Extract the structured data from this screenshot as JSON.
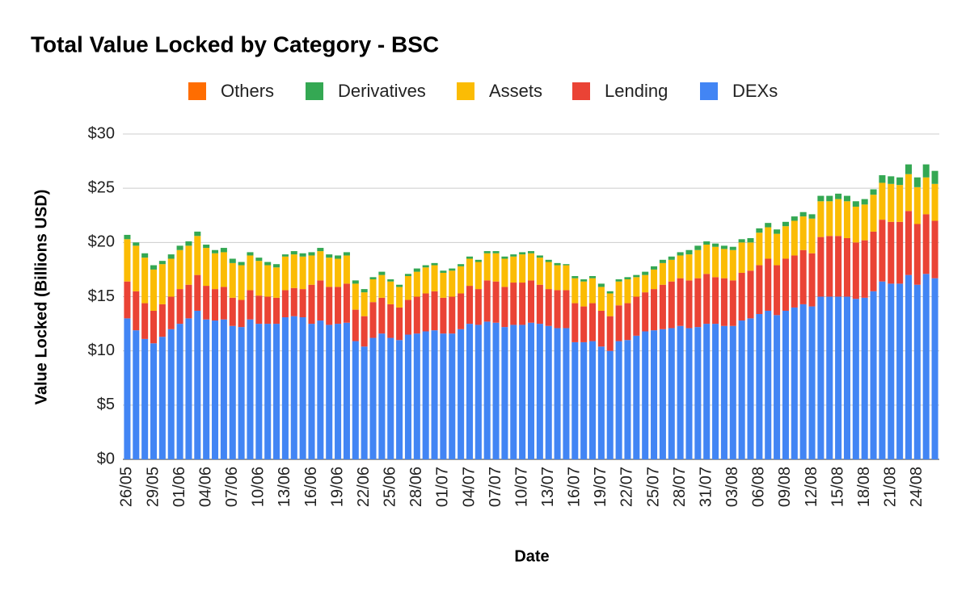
{
  "chart_data": {
    "type": "stacked_bar",
    "title": "Total Value Locked by Category - BSC",
    "x_label": "Date",
    "y_label": "Value Locked (Billions USD)",
    "categories": [
      "26/05",
      null,
      null,
      "29/05",
      null,
      null,
      "01/06",
      null,
      null,
      "04/06",
      null,
      null,
      "07/06",
      null,
      null,
      "10/06",
      null,
      null,
      "13/06",
      null,
      null,
      "16/06",
      null,
      null,
      "19/06",
      null,
      null,
      "22/06",
      null,
      null,
      "25/06",
      null,
      null,
      "28/06",
      null,
      null,
      "01/07",
      null,
      null,
      "04/07",
      null,
      null,
      "07/07",
      null,
      null,
      "10/07",
      null,
      null,
      "13/07",
      null,
      null,
      "16/07",
      null,
      null,
      "19/07",
      null,
      null,
      "22/07",
      null,
      null,
      "25/07",
      null,
      null,
      "28/07",
      null,
      null,
      "31/07",
      null,
      null,
      "03/08",
      null,
      null,
      "06/08",
      null,
      null,
      "09/08",
      null,
      null,
      "12/08",
      null,
      null,
      "15/08",
      null,
      null,
      "18/08",
      null,
      null,
      "21/08",
      null,
      null,
      "24/08",
      null,
      null
    ],
    "series": [
      {
        "name": "DEXs",
        "color": "#4285f4",
        "values": [
          13.0,
          11.9,
          11.1,
          10.7,
          11.3,
          12.0,
          12.5,
          13.0,
          13.7,
          12.9,
          12.8,
          12.9,
          12.3,
          12.2,
          12.9,
          12.5,
          12.5,
          12.5,
          13.1,
          13.2,
          13.1,
          12.5,
          12.8,
          12.4,
          12.5,
          12.6,
          10.9,
          10.4,
          11.2,
          11.6,
          11.2,
          11.0,
          11.5,
          11.6,
          11.8,
          11.9,
          11.6,
          11.6,
          12.0,
          12.5,
          12.4,
          12.7,
          12.6,
          12.2,
          12.4,
          12.4,
          12.6,
          12.5,
          12.3,
          12.1,
          12.1,
          10.8,
          10.8,
          10.9,
          10.4,
          10.0,
          10.9,
          11.0,
          11.4,
          11.8,
          11.9,
          12.0,
          12.1,
          12.3,
          12.1,
          12.2,
          12.5,
          12.5,
          12.3,
          12.3,
          12.8,
          13.0,
          13.4,
          13.7,
          13.3,
          13.7,
          14.0,
          14.3,
          14.1,
          15.0,
          15.0,
          15.0,
          15.0,
          14.8,
          14.9,
          15.5,
          16.4,
          16.2,
          16.2,
          17.0,
          16.1,
          17.1,
          16.7
        ]
      },
      {
        "name": "Lending",
        "color": "#ea4335",
        "values": [
          3.4,
          3.6,
          3.3,
          3.0,
          3.0,
          3.0,
          3.2,
          3.1,
          3.3,
          3.1,
          2.9,
          3.0,
          2.6,
          2.5,
          2.7,
          2.6,
          2.5,
          2.4,
          2.5,
          2.6,
          2.6,
          3.6,
          3.7,
          3.5,
          3.4,
          3.6,
          2.9,
          2.8,
          3.3,
          3.3,
          3.1,
          3.0,
          3.2,
          3.4,
          3.5,
          3.6,
          3.3,
          3.4,
          3.3,
          3.5,
          3.3,
          3.8,
          3.8,
          3.7,
          3.9,
          3.9,
          3.9,
          3.6,
          3.4,
          3.5,
          3.5,
          3.6,
          3.3,
          3.5,
          3.3,
          3.2,
          3.3,
          3.4,
          3.6,
          3.6,
          3.8,
          4.1,
          4.3,
          4.4,
          4.4,
          4.5,
          4.6,
          4.3,
          4.4,
          4.2,
          4.4,
          4.4,
          4.5,
          4.8,
          4.6,
          4.8,
          4.8,
          5.0,
          4.9,
          5.5,
          5.6,
          5.6,
          5.4,
          5.2,
          5.3,
          5.5,
          5.7,
          5.7,
          5.7,
          5.9,
          5.6,
          5.5,
          5.3
        ]
      },
      {
        "name": "Assets",
        "color": "#fbbc04",
        "values": [
          3.9,
          4.2,
          4.2,
          3.8,
          3.7,
          3.5,
          3.6,
          3.6,
          3.6,
          3.5,
          3.3,
          3.2,
          3.2,
          3.2,
          3.2,
          3.2,
          2.9,
          2.8,
          3.1,
          3.1,
          3.0,
          2.7,
          2.7,
          2.7,
          2.6,
          2.6,
          2.4,
          2.2,
          2.1,
          2.1,
          2.1,
          1.9,
          2.2,
          2.3,
          2.4,
          2.4,
          2.3,
          2.4,
          2.5,
          2.5,
          2.5,
          2.5,
          2.6,
          2.6,
          2.4,
          2.6,
          2.5,
          2.5,
          2.5,
          2.3,
          2.3,
          2.3,
          2.3,
          2.3,
          2.2,
          2.1,
          2.2,
          2.2,
          1.8,
          1.6,
          1.8,
          2.0,
          2.0,
          2.1,
          2.4,
          2.6,
          2.7,
          2.8,
          2.7,
          2.8,
          2.8,
          2.6,
          3.0,
          2.9,
          2.9,
          3.0,
          3.2,
          3.1,
          3.2,
          3.3,
          3.2,
          3.4,
          3.4,
          3.3,
          3.3,
          3.4,
          3.4,
          3.5,
          3.4,
          3.4,
          3.4,
          3.4,
          3.4
        ]
      },
      {
        "name": "Derivatives",
        "color": "#34a853",
        "values": [
          0.4,
          0.3,
          0.4,
          0.4,
          0.3,
          0.4,
          0.4,
          0.4,
          0.4,
          0.3,
          0.3,
          0.4,
          0.4,
          0.3,
          0.3,
          0.3,
          0.3,
          0.3,
          0.2,
          0.3,
          0.3,
          0.3,
          0.3,
          0.3,
          0.3,
          0.3,
          0.3,
          0.3,
          0.2,
          0.3,
          0.2,
          0.2,
          0.2,
          0.3,
          0.2,
          0.2,
          0.2,
          0.2,
          0.2,
          0.2,
          0.2,
          0.2,
          0.2,
          0.2,
          0.2,
          0.2,
          0.2,
          0.2,
          0.2,
          0.2,
          0.1,
          0.2,
          0.2,
          0.2,
          0.3,
          0.2,
          0.2,
          0.2,
          0.2,
          0.3,
          0.3,
          0.3,
          0.3,
          0.3,
          0.4,
          0.4,
          0.3,
          0.3,
          0.3,
          0.3,
          0.3,
          0.4,
          0.4,
          0.4,
          0.4,
          0.4,
          0.4,
          0.4,
          0.4,
          0.5,
          0.5,
          0.5,
          0.5,
          0.5,
          0.5,
          0.5,
          0.7,
          0.7,
          0.7,
          0.9,
          0.9,
          1.2,
          1.2
        ]
      },
      {
        "name": "Others",
        "color": "#ff6d01",
        "values": [
          0,
          0,
          0,
          0,
          0,
          0,
          0,
          0,
          0,
          0,
          0,
          0,
          0,
          0,
          0,
          0,
          0,
          0,
          0,
          0,
          0,
          0,
          0,
          0,
          0,
          0,
          0,
          0,
          0,
          0,
          0,
          0,
          0,
          0,
          0,
          0,
          0,
          0,
          0,
          0,
          0,
          0,
          0,
          0,
          0,
          0,
          0,
          0,
          0,
          0,
          0,
          0,
          0,
          0,
          0,
          0,
          0,
          0,
          0,
          0,
          0,
          0,
          0,
          0,
          0,
          0,
          0,
          0,
          0,
          0,
          0,
          0,
          0,
          0,
          0,
          0,
          0,
          0,
          0,
          0,
          0,
          0,
          0,
          0,
          0,
          0,
          0,
          0,
          0,
          0,
          0,
          0,
          0
        ]
      }
    ],
    "ylim": [
      0,
      30
    ],
    "yticks": [
      {
        "value": 0,
        "label": "$0"
      },
      {
        "value": 5,
        "label": "$5"
      },
      {
        "value": 10,
        "label": "$10"
      },
      {
        "value": 15,
        "label": "$15"
      },
      {
        "value": 20,
        "label": "$20"
      },
      {
        "value": 25,
        "label": "$25"
      },
      {
        "value": 30,
        "label": "$30"
      }
    ],
    "grid": true,
    "legend": "top"
  }
}
